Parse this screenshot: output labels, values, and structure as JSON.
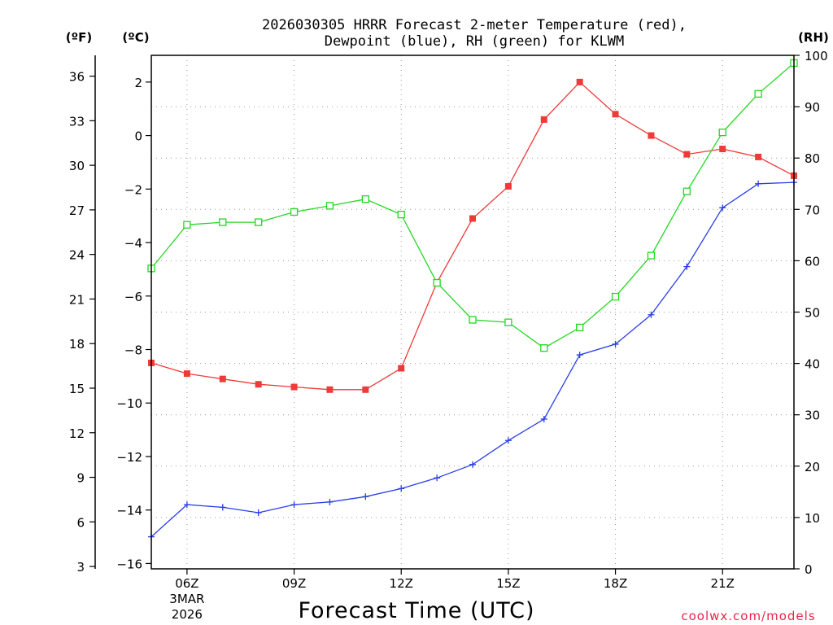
{
  "title_line1": "2026030305 HRRR Forecast 2-meter Temperature (red),",
  "title_line2": "Dewpoint (blue), RH (green) for KLWM",
  "units": {
    "f": "(ºF)",
    "c": "(ºC)",
    "rh": "(RH)"
  },
  "credit": "coolwx.com/models",
  "chart_data": {
    "type": "line",
    "title": "2026030305 HRRR Forecast 2-meter Temperature (red), Dewpoint (blue), RH (green) for KLWM",
    "xlabel": "Forecast Time (UTC)",
    "x": [
      5,
      6,
      7,
      8,
      9,
      10,
      11,
      12,
      13,
      14,
      15,
      16,
      17,
      18,
      19,
      20,
      21,
      22,
      23
    ],
    "xlim": [
      5,
      23
    ],
    "x_ticks": [
      {
        "x": 6,
        "label": "06Z",
        "sub1": "3MAR",
        "sub2": "2026"
      },
      {
        "x": 9,
        "label": "09Z"
      },
      {
        "x": 12,
        "label": "12Z"
      },
      {
        "x": 15,
        "label": "15Z"
      },
      {
        "x": 18,
        "label": "18Z"
      },
      {
        "x": 21,
        "label": "21Z"
      }
    ],
    "ylim_c": [
      -16.2,
      3.0
    ],
    "yticks_c": [
      2,
      0,
      -2,
      -4,
      -6,
      -8,
      -10,
      -12,
      -14,
      -16
    ],
    "ylim_f": [
      2.84,
      37.4
    ],
    "yticks_f": [
      36,
      33,
      30,
      27,
      24,
      21,
      18,
      15,
      12,
      9,
      6,
      3
    ],
    "ylim_rh": [
      0,
      100
    ],
    "yticks_rh": [
      100,
      90,
      80,
      70,
      60,
      50,
      40,
      30,
      20,
      10,
      0
    ],
    "grid": true,
    "series": [
      {
        "name": "Temperature",
        "axis": "c",
        "color": "#f03a3a",
        "marker": "filled-square",
        "values": [
          -8.5,
          -8.9,
          -9.1,
          -9.3,
          -9.4,
          -9.5,
          -9.5,
          -8.7,
          -5.5,
          -3.1,
          -1.9,
          0.6,
          2.0,
          0.8,
          0.0,
          -0.7,
          -0.5,
          -0.8,
          -1.5
        ]
      },
      {
        "name": "Dewpoint",
        "axis": "c",
        "color": "#2a3ee8",
        "marker": "plus",
        "values": [
          -15.0,
          -13.8,
          -13.9,
          -14.1,
          -13.8,
          -13.7,
          -13.5,
          -13.2,
          -12.8,
          -12.3,
          -11.4,
          -10.6,
          -8.2,
          -7.8,
          -6.7,
          -4.9,
          -2.7,
          -1.8,
          -1.75
        ]
      },
      {
        "name": "RH",
        "axis": "rh",
        "color": "#22d822",
        "marker": "open-square",
        "values": [
          58.5,
          67,
          67.5,
          67.5,
          69.5,
          70.7,
          72,
          69,
          55.7,
          48.5,
          48,
          43,
          47,
          53,
          61,
          73.5,
          85,
          92.5,
          98.5
        ]
      }
    ]
  }
}
